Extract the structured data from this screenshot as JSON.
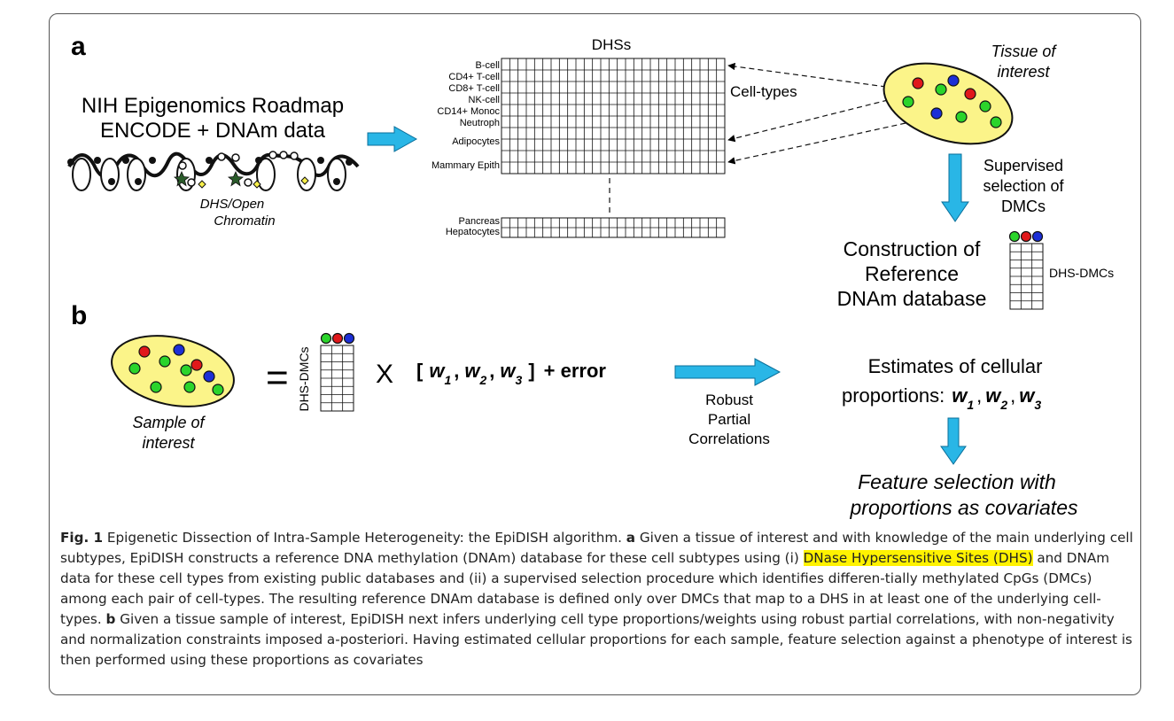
{
  "panel_a": {
    "label": "a",
    "source_line1": "NIH Epigenomics Roadmap",
    "source_line2": "ENCODE + DNAm data",
    "chromatin_label_1": "DHS/Open",
    "chromatin_label_2": "Chromatin",
    "matrix_title": "DHSs",
    "cell_types": [
      "B-cell",
      "CD4+ T-cell",
      "CD8+ T-cell",
      "NK-cell",
      "CD14+ Monoc",
      "Neutroph",
      "Adipocytes",
      "Mammary Epith"
    ],
    "cell_types_label": "Cell-types",
    "lower_cell_types": [
      "Pancreas",
      "Hepatocytes"
    ],
    "tissue_label_1": "Tissue of",
    "tissue_label_2": "interest",
    "supervised_1": "Supervised",
    "supervised_2": "selection of",
    "supervised_3": "DMCs",
    "construction_1": "Construction of",
    "construction_2": "Reference",
    "construction_3": "DNAm database",
    "dhs_dmcs_label": "DHS-DMCs"
  },
  "panel_b": {
    "label": "b",
    "sample_label_1": "Sample of",
    "sample_label_2": "interest",
    "equals": "=",
    "dhs_dmcs_label": "DHS-DMCs",
    "times": "X",
    "bracket_open": "[",
    "bracket_close": "]",
    "w": "w",
    "sub1": "1",
    "sub2": "2",
    "sub3": "3",
    "comma": ",",
    "plus_error": "+ error",
    "robust_1": "Robust",
    "robust_2": "Partial",
    "robust_3": "Correlations",
    "estimates_1": "Estimates of cellular",
    "estimates_2": "proportions:",
    "feature_1": "Feature selection with",
    "feature_2": "proportions as covariates"
  },
  "colors": {
    "ellipse_fill": "#fbf489",
    "arrow_fill": "#29b6e6",
    "dot_red": "#e0181b",
    "dot_green": "#2bd42b",
    "dot_blue": "#1c2fd6",
    "highlight": "#fff200"
  },
  "caption": {
    "fig_label": "Fig. 1",
    "part1": " Epigenetic Dissection of Intra-Sample Heterogeneity: the EpiDISH algorithm. ",
    "a_label": "a",
    "part2": " Given a tissue of interest and with knowledge of the main underlying cell subtypes, EpiDISH constructs a reference DNA methylation (DNAm) database for these cell subtypes using (i) ",
    "highlight": "DNase Hypersensitive Sites (DHS)",
    "part3": " and DNAm data for these cell types from existing public databases and (ii) a supervised selection procedure which identifies differen-tially methylated CpGs (DMCs) among each pair of cell-types. The resulting reference DNAm database is defined only over DMCs that map to a DHS in at least one of the underlying cell-types. ",
    "b_label": "b",
    "part4": " Given a tissue sample of interest, EpiDISH next infers underlying cell type proportions/weights using robust partial correlations, with non-negativity and normalization constraints imposed a-posteriori. Having estimated cellular proportions for each sample, feature selection against a phenotype of interest is then performed using these proportions as covariates"
  }
}
